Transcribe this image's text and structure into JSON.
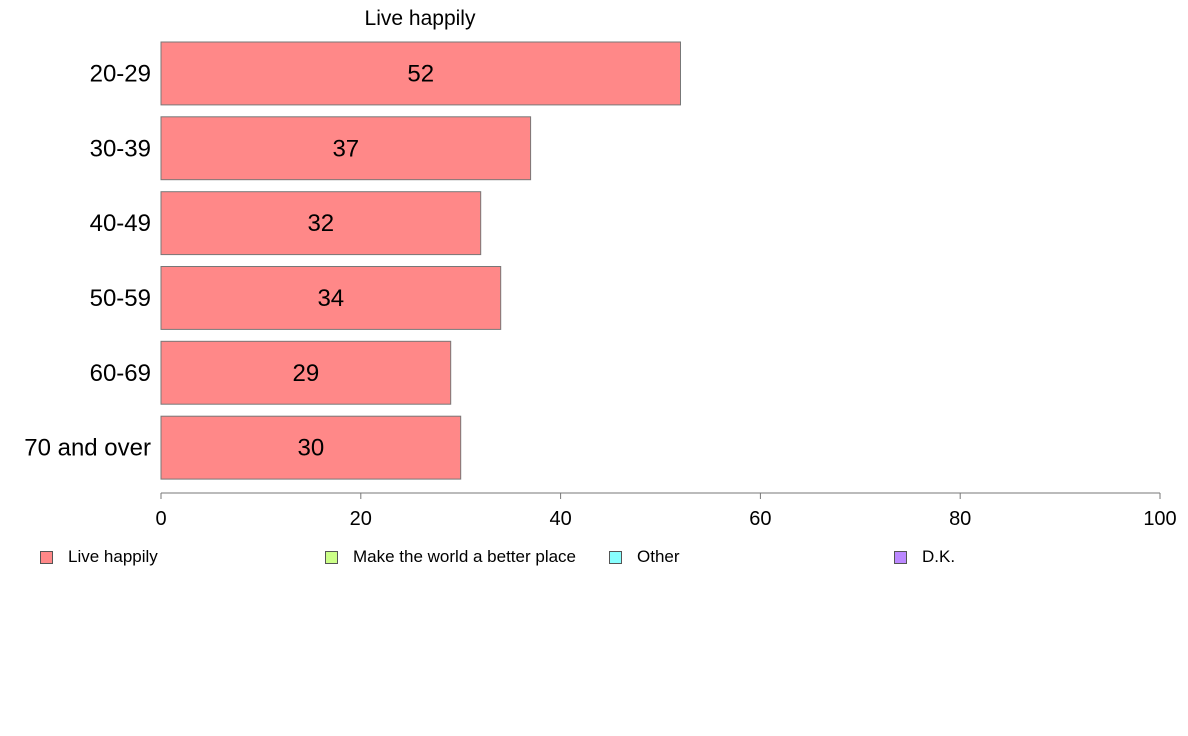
{
  "chart_data": {
    "type": "bar",
    "orientation": "horizontal",
    "title": "Live happily",
    "categories": [
      "20-29",
      "30-39",
      "40-49",
      "50-59",
      "60-69",
      "70 and over"
    ],
    "series": [
      {
        "name": "Live happily",
        "values": [
          52,
          37,
          32,
          34,
          29,
          30
        ],
        "color": "#ff8888"
      }
    ],
    "value_labels": [
      "52",
      "37",
      "32",
      "34",
      "29",
      "30"
    ],
    "xlim": [
      0,
      100
    ],
    "x_ticks": [
      0,
      20,
      40,
      60,
      80,
      100
    ],
    "x_tick_labels": [
      "0",
      "20",
      "40",
      "60",
      "80",
      "100"
    ],
    "grid": false,
    "legend_position": "bottom"
  },
  "legend": {
    "items": [
      {
        "label": "Live happily",
        "color": "#ff8888"
      },
      {
        "label": "Make the world a better place",
        "color": "#ccff88"
      },
      {
        "label": "Other",
        "color": "#88ffff"
      },
      {
        "label": "D.K.",
        "color": "#bb88ff"
      }
    ]
  }
}
